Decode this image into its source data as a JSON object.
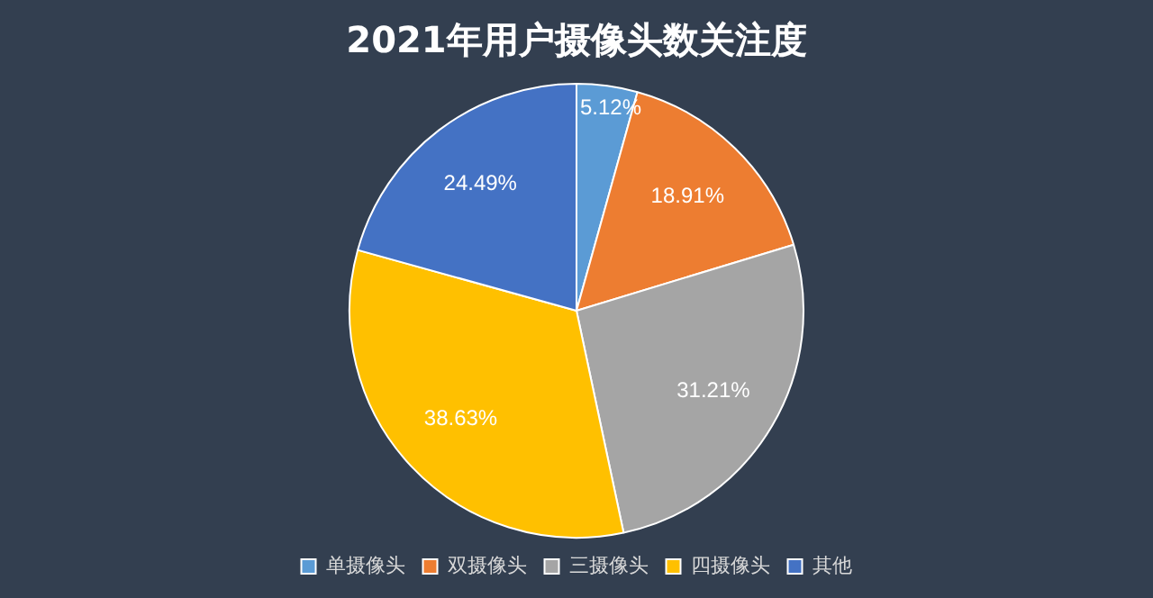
{
  "chart_data": {
    "type": "pie",
    "title": "2021年用户摄像头数关注度",
    "categories": [
      "单摄像头",
      "双摄像头",
      "三摄像头",
      "四摄像头",
      "其他"
    ],
    "values": [
      5.12,
      18.91,
      31.21,
      38.63,
      24.49
    ],
    "colors": [
      "#5b9bd5",
      "#ed7d31",
      "#a5a5a5",
      "#ffc000",
      "#4472c4"
    ],
    "value_labels": [
      "5.12%",
      "18.91%",
      "31.21%",
      "38.63%",
      "24.49%"
    ],
    "legend": "bottom"
  }
}
